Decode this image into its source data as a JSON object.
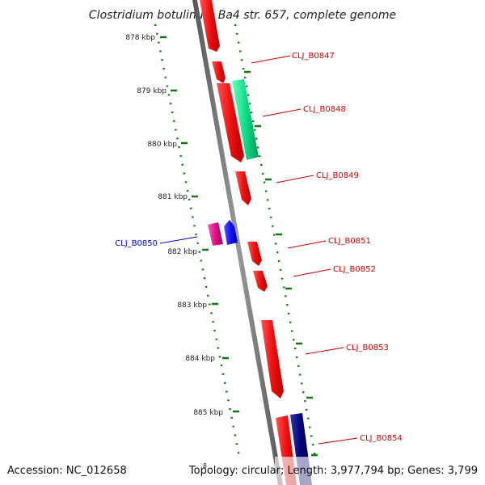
{
  "title": "Clostridium botulinum Ba4 str. 657, complete genome",
  "tick_labels": [
    "878 kbp",
    "879 kbp",
    "880 kbp",
    "881 kbp",
    "882 kbp",
    "883 kbp",
    "884 kbp",
    "885 kbp"
  ],
  "cut_tick_label": "8",
  "gene_labels": [
    {
      "name": "CLJ_B0847",
      "strand": "forward"
    },
    {
      "name": "CLJ_B0848",
      "strand": "forward"
    },
    {
      "name": "CLJ_B0849",
      "strand": "forward"
    },
    {
      "name": "CLJ_B0850",
      "strand": "reverse"
    },
    {
      "name": "CLJ_B0851",
      "strand": "forward"
    },
    {
      "name": "CLJ_B0852",
      "strand": "forward"
    },
    {
      "name": "CLJ_B0853",
      "strand": "forward"
    },
    {
      "name": "CLJ_B0854",
      "strand": "forward"
    }
  ],
  "footer": {
    "accession": "Accession: NC_012658",
    "summary": "Topology: circular; Length: 3,977,794 bp; Genes: 3,799"
  },
  "colors": {
    "forward_label": "#cc0000",
    "reverse_label": "#0000cc",
    "cds_forward": "#ee1111",
    "cds_green": "#11dd88",
    "cds_blue": "#1111ee",
    "cds_magenta": "#dd1188",
    "cds_navy": "#000077",
    "backbone": "#888888",
    "tick": "#117711"
  }
}
